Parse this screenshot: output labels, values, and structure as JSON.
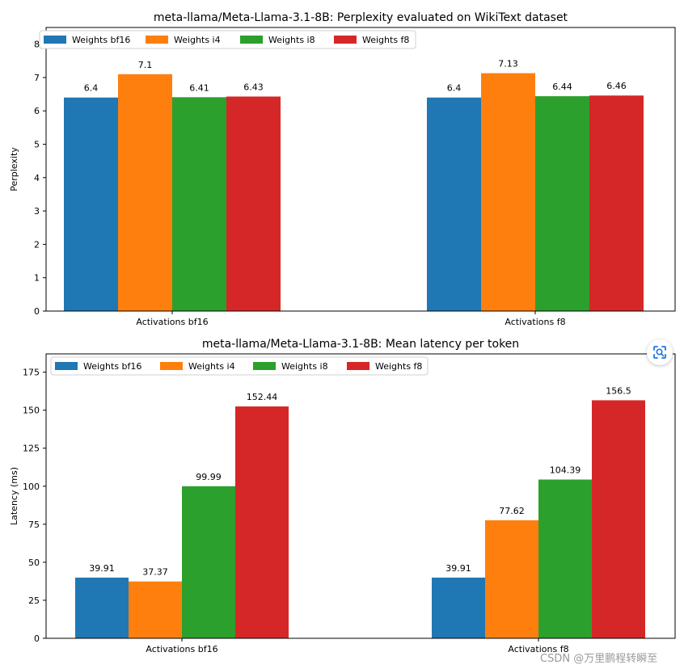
{
  "chart_data": [
    {
      "type": "bar",
      "title": "meta-llama/Meta-Llama-3.1-8B: Perplexity evaluated on WikiText dataset",
      "xlabel": "",
      "ylabel": "Perplexity",
      "ylim": [
        0,
        8.5
      ],
      "yticks": [
        0,
        1,
        2,
        3,
        4,
        5,
        6,
        7,
        8
      ],
      "categories": [
        "Activations bf16",
        "Activations f8"
      ],
      "series": [
        {
          "name": "Weights bf16",
          "values": [
            6.4,
            6.4
          ],
          "labels": [
            "6.4",
            "6.4"
          ],
          "color": "#1f77b4"
        },
        {
          "name": "Weights i4",
          "values": [
            7.1,
            7.13
          ],
          "labels": [
            "7.1",
            "7.13"
          ],
          "color": "#ff7f0e"
        },
        {
          "name": "Weights i8",
          "values": [
            6.41,
            6.44
          ],
          "labels": [
            "6.41",
            "6.44"
          ],
          "color": "#2ca02c"
        },
        {
          "name": "Weights f8",
          "values": [
            6.43,
            6.46
          ],
          "labels": [
            "6.43",
            "6.46"
          ],
          "color": "#d62728"
        }
      ],
      "legend": "top-left",
      "grid": false
    },
    {
      "type": "bar",
      "title": "meta-llama/Meta-Llama-3.1-8B: Mean latency per token",
      "xlabel": "",
      "ylabel": "Latency (ms)",
      "ylim": [
        0,
        187
      ],
      "yticks": [
        0,
        25,
        50,
        75,
        100,
        125,
        150,
        175
      ],
      "categories": [
        "Activations bf16",
        "Activations f8"
      ],
      "series": [
        {
          "name": "Weights bf16",
          "values": [
            39.91,
            39.91
          ],
          "labels": [
            "39.91",
            "39.91"
          ],
          "color": "#1f77b4"
        },
        {
          "name": "Weights i4",
          "values": [
            37.37,
            77.62
          ],
          "labels": [
            "37.37",
            "77.62"
          ],
          "color": "#ff7f0e"
        },
        {
          "name": "Weights i8",
          "values": [
            99.99,
            104.39
          ],
          "labels": [
            "99.99",
            "104.39"
          ],
          "color": "#2ca02c"
        },
        {
          "name": "Weights f8",
          "values": [
            152.44,
            156.5
          ],
          "labels": [
            "152.44",
            "156.5"
          ],
          "color": "#d62728"
        }
      ],
      "legend": "top-left",
      "grid": false
    }
  ],
  "overlay": {
    "lens_icon": "lens-scan-icon",
    "watermark": "CSDN @万里鹏程转瞬至"
  }
}
